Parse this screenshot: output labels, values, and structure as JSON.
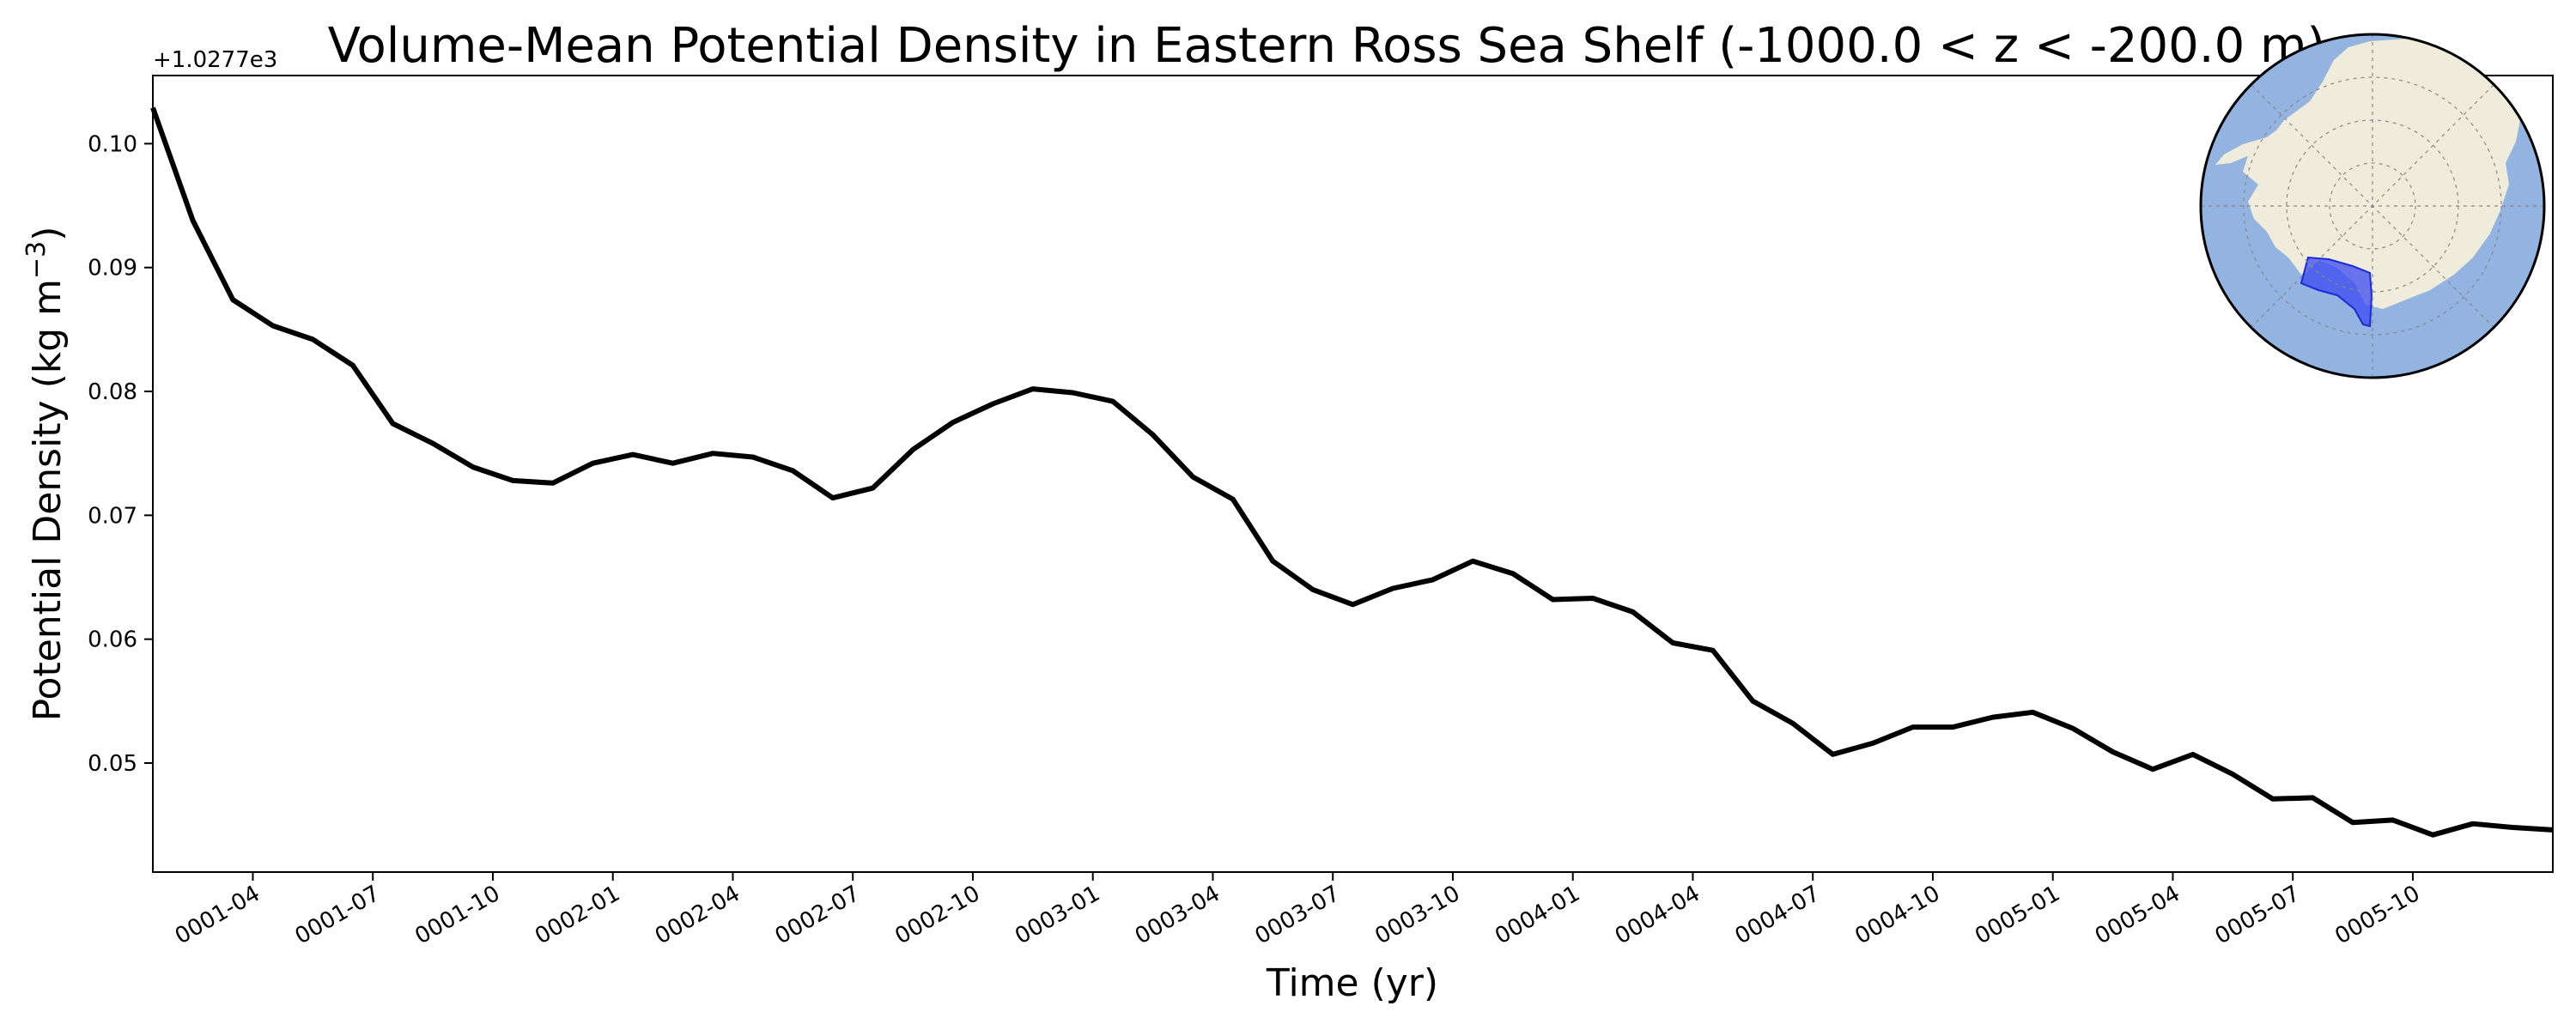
{
  "chart_data": {
    "type": "line",
    "title": "Volume-Mean Potential Density in Eastern Ross Sea Shelf (-1000.0 < z < -200.0 m)",
    "xlabel": "Time (yr)",
    "ylabel_main": "Potential Density (kg m",
    "ylabel_sup": "−3",
    "ylabel_close": ")",
    "y_offset_label": "+1.0277e3",
    "ylim": [
      0.0412,
      0.1055
    ],
    "xlim": [
      0.5,
      60.5
    ],
    "y_ticks": [
      {
        "value": 0.05,
        "label": "0.05"
      },
      {
        "value": 0.06,
        "label": "0.06"
      },
      {
        "value": 0.07,
        "label": "0.07"
      },
      {
        "value": 0.08,
        "label": "0.08"
      },
      {
        "value": 0.09,
        "label": "0.09"
      },
      {
        "value": 0.1,
        "label": "0.10"
      }
    ],
    "x_ticks": [
      {
        "value": 3,
        "label": "0001-04"
      },
      {
        "value": 6,
        "label": "0001-07"
      },
      {
        "value": 9,
        "label": "0001-10"
      },
      {
        "value": 12,
        "label": "0002-01"
      },
      {
        "value": 15,
        "label": "0002-04"
      },
      {
        "value": 18,
        "label": "0002-07"
      },
      {
        "value": 21,
        "label": "0002-10"
      },
      {
        "value": 24,
        "label": "0003-01"
      },
      {
        "value": 27,
        "label": "0003-04"
      },
      {
        "value": 30,
        "label": "0003-07"
      },
      {
        "value": 33,
        "label": "0003-10"
      },
      {
        "value": 36,
        "label": "0004-01"
      },
      {
        "value": 39,
        "label": "0004-04"
      },
      {
        "value": 42,
        "label": "0004-07"
      },
      {
        "value": 45,
        "label": "0004-10"
      },
      {
        "value": 48,
        "label": "0005-01"
      },
      {
        "value": 51,
        "label": "0005-04"
      },
      {
        "value": 54,
        "label": "0005-07"
      },
      {
        "value": 57,
        "label": "0005-10"
      }
    ],
    "series": [
      {
        "name": "volume-mean potential density",
        "color": "#000000",
        "x": [
          0.5,
          1.5,
          2.5,
          3.5,
          4.5,
          5.5,
          6.5,
          7.5,
          8.5,
          9.5,
          10.5,
          11.5,
          12.5,
          13.5,
          14.5,
          15.5,
          16.5,
          17.5,
          18.5,
          19.5,
          20.5,
          21.5,
          22.5,
          23.5,
          24.5,
          25.5,
          26.5,
          27.5,
          28.5,
          29.5,
          30.5,
          31.5,
          32.5,
          33.5,
          34.5,
          35.5,
          36.5,
          37.5,
          38.5,
          39.5,
          40.5,
          41.5,
          42.5,
          43.5,
          44.5,
          45.5,
          46.5,
          47.5,
          48.5,
          49.5,
          50.5,
          51.5,
          52.5,
          53.5,
          54.5,
          55.5,
          56.5,
          57.5,
          58.5,
          59.5,
          60.5
        ],
        "values": [
          0.1029,
          0.0938,
          0.0874,
          0.0853,
          0.0842,
          0.0821,
          0.0774,
          0.0758,
          0.0739,
          0.0728,
          0.0726,
          0.0742,
          0.0749,
          0.0742,
          0.075,
          0.0747,
          0.0736,
          0.0714,
          0.0722,
          0.0753,
          0.0775,
          0.079,
          0.0802,
          0.0799,
          0.0792,
          0.0765,
          0.0731,
          0.0713,
          0.0663,
          0.064,
          0.0628,
          0.0641,
          0.0648,
          0.0663,
          0.0653,
          0.0632,
          0.0633,
          0.0622,
          0.0597,
          0.0591,
          0.055,
          0.0532,
          0.0507,
          0.0516,
          0.0529,
          0.0529,
          0.0537,
          0.0541,
          0.0528,
          0.0509,
          0.0495,
          0.0507,
          0.0491,
          0.0471,
          0.0472,
          0.0452,
          0.0454,
          0.0442,
          0.0451,
          0.0448,
          0.0446
        ]
      }
    ]
  },
  "inset_map": {
    "ocean_color": "#93b3e0",
    "land_color": "#efecdc",
    "region_color": "#3b49f2"
  }
}
